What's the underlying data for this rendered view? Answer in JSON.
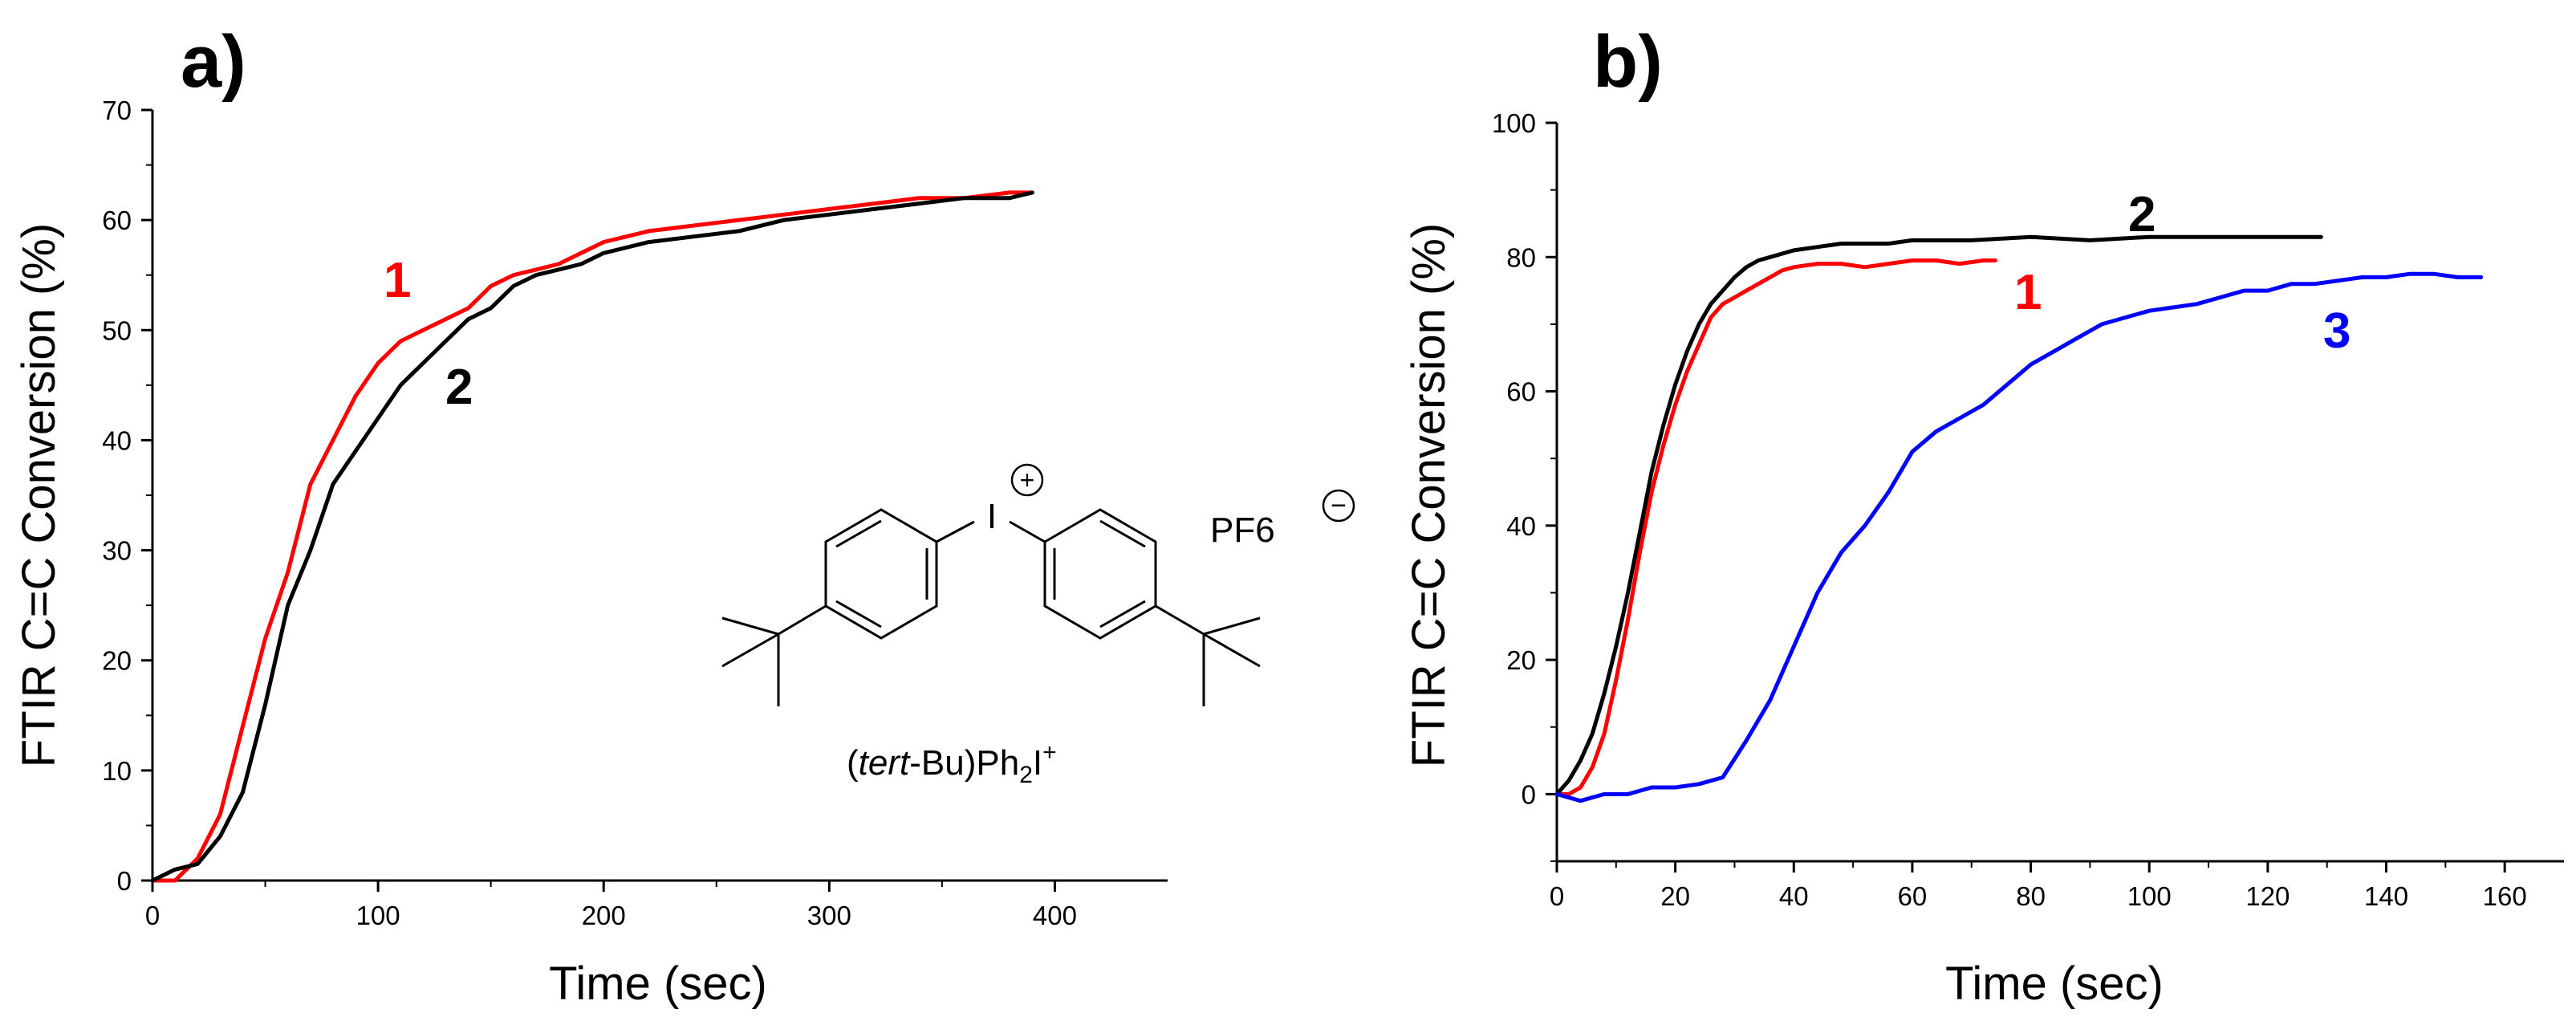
{
  "chart_data": [
    {
      "panel": "a)",
      "type": "line",
      "title": "",
      "xlabel": "Time (sec)",
      "ylabel": "FTIR C=C Conversion  (%)",
      "xlim": [
        0,
        450
      ],
      "ylim": [
        0,
        70
      ],
      "xticks": [
        0,
        100,
        200,
        300,
        400
      ],
      "yticks": [
        0,
        10,
        20,
        30,
        40,
        50,
        60,
        70
      ],
      "xtick_labels": [
        "0",
        "100",
        "200",
        "300",
        "400"
      ],
      "ytick_labels": [
        "0",
        "10",
        "20",
        "30",
        "40",
        "50",
        "60",
        "70"
      ],
      "grid": false,
      "legend": "none (inline labels)",
      "series": [
        {
          "name": "1",
          "color": "#ff0000",
          "x": [
            0,
            10,
            20,
            30,
            40,
            50,
            60,
            70,
            80,
            90,
            100,
            110,
            120,
            130,
            140,
            150,
            160,
            170,
            180,
            190,
            200,
            220,
            240,
            260,
            280,
            300,
            320,
            340,
            360,
            380,
            390
          ],
          "y": [
            0,
            0,
            2,
            6,
            14,
            22,
            28,
            36,
            40,
            44,
            47,
            49,
            50,
            51,
            52,
            54,
            55,
            55.5,
            56,
            57,
            58,
            59,
            59.5,
            60,
            60.5,
            61,
            61.5,
            62,
            62,
            62.5,
            62.5
          ]
        },
        {
          "name": "2",
          "color": "#000000",
          "x": [
            0,
            10,
            20,
            30,
            40,
            50,
            60,
            70,
            80,
            90,
            100,
            110,
            120,
            130,
            140,
            150,
            160,
            170,
            180,
            190,
            200,
            220,
            240,
            260,
            280,
            300,
            320,
            340,
            360,
            380,
            390
          ],
          "y": [
            0,
            1,
            1.5,
            4,
            8,
            16,
            25,
            30,
            36,
            39,
            42,
            45,
            47,
            49,
            51,
            52,
            54,
            55,
            55.5,
            56,
            57,
            58,
            58.5,
            59,
            60,
            60.5,
            61,
            61.5,
            62,
            62,
            62.5
          ]
        }
      ],
      "annotations": [
        {
          "text": "1",
          "color": "#ff0000"
        },
        {
          "text": "2",
          "color": "#000000"
        }
      ],
      "inset": {
        "counter_anion": "PF6",
        "cation_label_prefix": "(",
        "cation_label_italic": "tert",
        "cation_label_rest": "-Bu)Ph",
        "cation_label_sub": "2",
        "cation_label_end": "I",
        "cation_label_sup": "+",
        "iodine": "I",
        "plus_charge": "+",
        "minus_charge": "−"
      }
    },
    {
      "panel": "b)",
      "type": "line",
      "title": "",
      "xlabel": "Time (sec)",
      "ylabel": "FTIR C=C Conversion  (%)",
      "xlim": [
        0,
        170
      ],
      "ylim": [
        -10,
        100
      ],
      "xticks": [
        0,
        20,
        40,
        60,
        80,
        100,
        120,
        140,
        160
      ],
      "yticks": [
        0,
        20,
        40,
        60,
        80,
        100
      ],
      "xtick_labels": [
        "0",
        "20",
        "40",
        "60",
        "80",
        "100",
        "120",
        "140",
        "160"
      ],
      "ytick_labels": [
        "0",
        "20",
        "40",
        "60",
        "80",
        "100"
      ],
      "grid": false,
      "legend": "none (inline labels)",
      "series": [
        {
          "name": "1",
          "color": "#ff0000",
          "x": [
            0,
            2,
            4,
            6,
            8,
            10,
            12,
            14,
            16,
            18,
            20,
            22,
            24,
            26,
            28,
            30,
            32,
            34,
            36,
            38,
            40,
            44,
            48,
            52,
            56,
            60,
            64,
            68,
            72,
            74
          ],
          "y": [
            0,
            0,
            1,
            4,
            9,
            17,
            26,
            36,
            45,
            52,
            58,
            63,
            67,
            71,
            73,
            74,
            75,
            76,
            77,
            78,
            78.5,
            79,
            79,
            78.5,
            79,
            79.5,
            79.5,
            79,
            79.5,
            79.5
          ]
        },
        {
          "name": "2",
          "color": "#000000",
          "x": [
            0,
            2,
            4,
            6,
            8,
            10,
            12,
            14,
            16,
            18,
            20,
            22,
            24,
            26,
            28,
            30,
            32,
            34,
            36,
            40,
            44,
            48,
            52,
            56,
            60,
            70,
            80,
            90,
            100,
            110,
            120,
            129
          ],
          "y": [
            0,
            2,
            5,
            9,
            15,
            22,
            30,
            39,
            48,
            55,
            61,
            66,
            70,
            73,
            75,
            77,
            78.5,
            79.5,
            80,
            81,
            81.5,
            82,
            82,
            82,
            82.5,
            82.5,
            83,
            82.5,
            83,
            83,
            83,
            83
          ]
        },
        {
          "name": "3",
          "color": "#0000ff",
          "x": [
            0,
            4,
            8,
            12,
            16,
            20,
            24,
            28,
            32,
            36,
            40,
            44,
            48,
            52,
            56,
            60,
            64,
            68,
            72,
            76,
            80,
            84,
            88,
            92,
            96,
            100,
            104,
            108,
            112,
            116,
            120,
            124,
            128,
            132,
            136,
            140,
            144,
            148,
            152,
            156
          ],
          "y": [
            0,
            -1,
            0,
            0,
            1,
            1,
            1.5,
            2.5,
            8,
            14,
            22,
            30,
            36,
            40,
            45,
            51,
            54,
            56,
            58,
            61,
            64,
            66,
            68,
            70,
            71,
            72,
            72.5,
            73,
            74,
            75,
            75,
            76,
            76,
            76.5,
            77,
            77,
            77.5,
            77.5,
            77,
            77
          ]
        }
      ],
      "annotations": [
        {
          "text": "2",
          "color": "#000000"
        },
        {
          "text": "1",
          "color": "#ff0000"
        },
        {
          "text": "3",
          "color": "#0000ff"
        }
      ]
    }
  ]
}
